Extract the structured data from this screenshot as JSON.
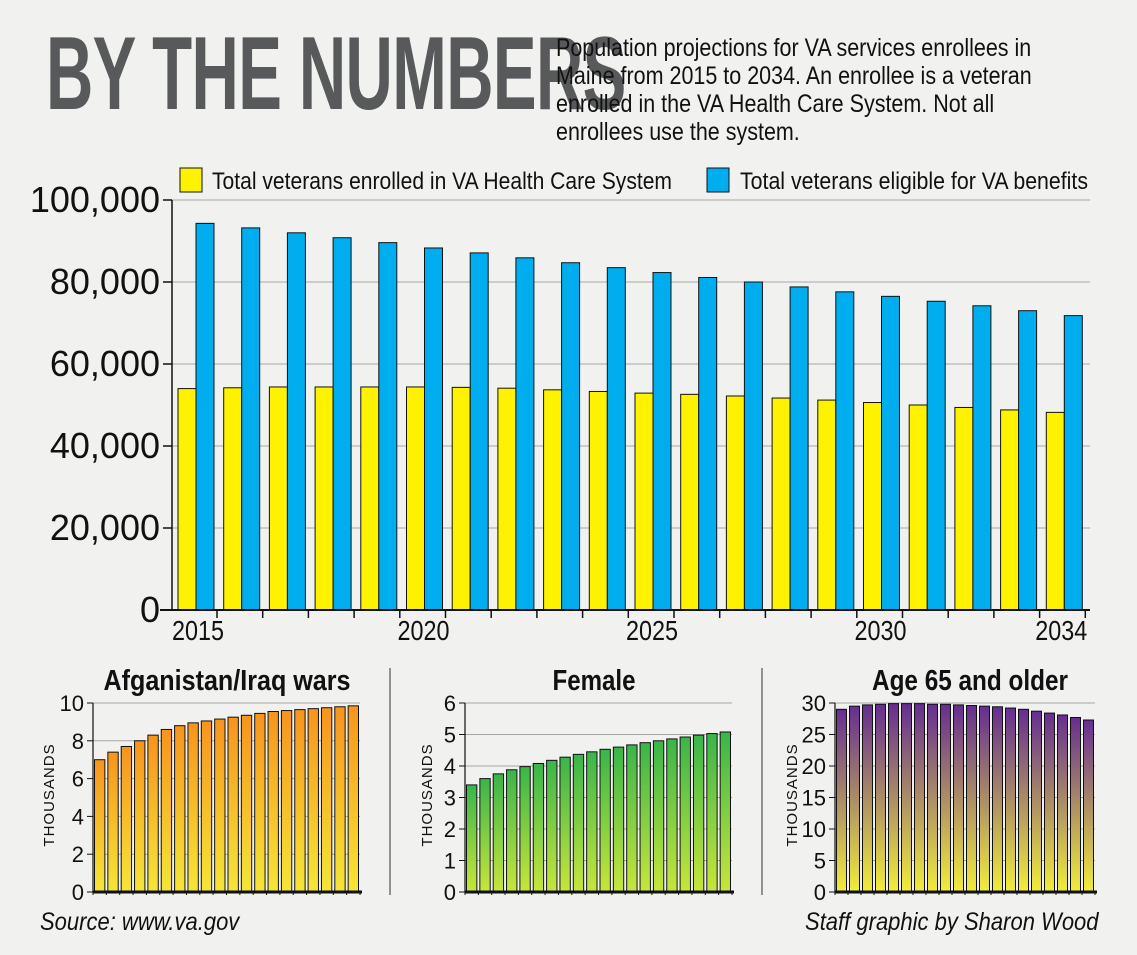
{
  "headline": "BY THE NUMBERS",
  "intro": "Population projections for VA services enrollees in Maine from 2015 to 2034. An enrollee is a veteran enrolled in the VA Health Care System. Not all enrollees use the system.",
  "source": "Source: www.va.gov",
  "credit": "Staff graphic by Sharon Wood",
  "colors": {
    "enrolled": "#fff200",
    "eligible": "#00aeef",
    "afghan_top": "#f7941d",
    "afghan_bottom": "#f5e637",
    "female_top": "#39b54a",
    "female_bottom": "#c8e63a",
    "age_top": "#662d91",
    "age_bottom": "#f2ee3a",
    "grid": "#a6a6a6"
  },
  "chart_data": [
    {
      "type": "bar",
      "title": "",
      "legend_position": "top",
      "x": [
        2015,
        2016,
        2017,
        2018,
        2019,
        2020,
        2021,
        2022,
        2023,
        2024,
        2025,
        2026,
        2027,
        2028,
        2029,
        2030,
        2031,
        2032,
        2033,
        2034
      ],
      "x_tick_labels": [
        "2015",
        "2020",
        "2025",
        "2030",
        "2034"
      ],
      "ylim": [
        0,
        100000
      ],
      "y_ticks": [
        "0",
        "20,000",
        "40,000",
        "60,000",
        "80,000",
        "100,000"
      ],
      "grid": true,
      "series": [
        {
          "name": "Total veterans enrolled in VA Health Care System",
          "values": [
            54000,
            54200,
            54400,
            54400,
            54400,
            54400,
            54300,
            54100,
            53700,
            53300,
            52900,
            52600,
            52200,
            51700,
            51200,
            50600,
            50000,
            49400,
            48800,
            48200
          ]
        },
        {
          "name": "Total veterans eligible for VA benefits",
          "values": [
            94300,
            93200,
            92000,
            90800,
            89600,
            88300,
            87100,
            85900,
            84700,
            83500,
            82300,
            81100,
            80000,
            78800,
            77600,
            76500,
            75300,
            74200,
            73000,
            71800
          ]
        }
      ]
    },
    {
      "type": "bar",
      "title": "Afganistan/Iraq wars",
      "ylabel": "THOUSANDS",
      "ylim": [
        0,
        10
      ],
      "y_ticks": [
        "0",
        "2",
        "4",
        "6",
        "8",
        "10"
      ],
      "values": [
        7.0,
        7.4,
        7.7,
        8.0,
        8.3,
        8.6,
        8.8,
        8.95,
        9.05,
        9.15,
        9.25,
        9.35,
        9.45,
        9.55,
        9.6,
        9.65,
        9.7,
        9.75,
        9.8,
        9.85
      ]
    },
    {
      "type": "bar",
      "title": "Female",
      "ylabel": "THOUSANDS",
      "ylim": [
        0,
        6
      ],
      "y_ticks": [
        "0",
        "1",
        "2",
        "3",
        "4",
        "5",
        "6"
      ],
      "values": [
        3.4,
        3.6,
        3.75,
        3.88,
        3.98,
        4.08,
        4.18,
        4.28,
        4.37,
        4.45,
        4.53,
        4.6,
        4.67,
        4.74,
        4.8,
        4.86,
        4.92,
        4.98,
        5.03,
        5.08
      ]
    },
    {
      "type": "bar",
      "title": "Age 65 and older",
      "ylabel": "THOUSANDS",
      "ylim": [
        0,
        30
      ],
      "y_ticks": [
        "0",
        "5",
        "10",
        "15",
        "20",
        "25",
        "30"
      ],
      "values": [
        29.0,
        29.5,
        29.7,
        29.8,
        29.9,
        29.9,
        29.9,
        29.8,
        29.8,
        29.7,
        29.6,
        29.5,
        29.4,
        29.2,
        29.0,
        28.7,
        28.4,
        28.1,
        27.7,
        27.3
      ]
    }
  ]
}
